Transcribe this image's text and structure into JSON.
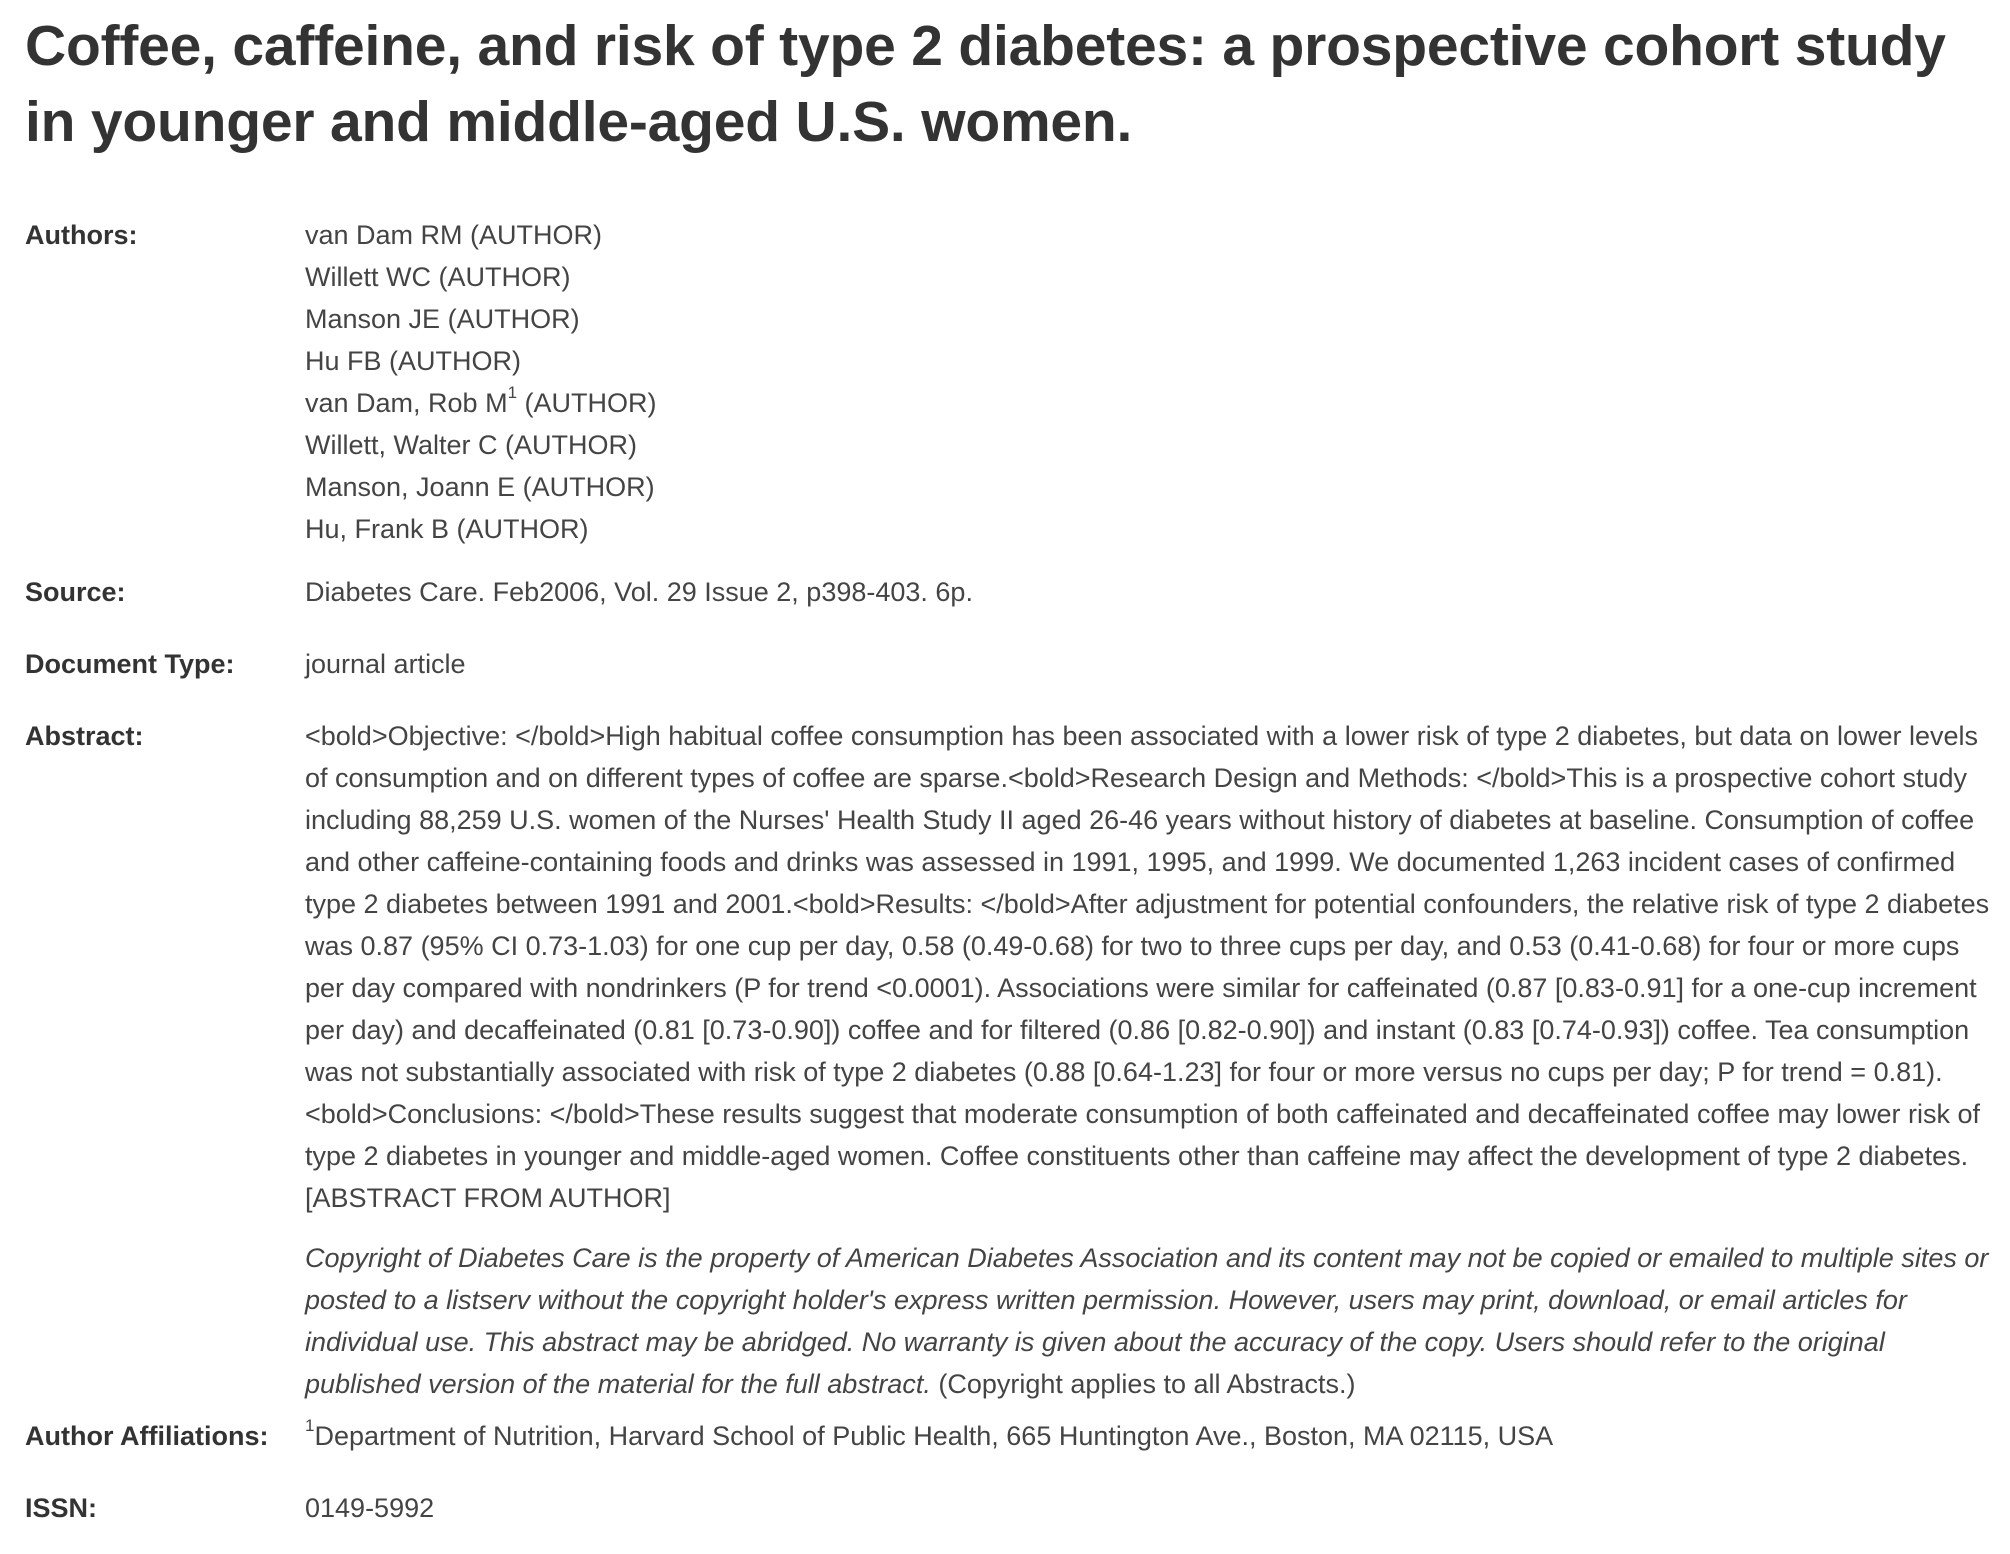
{
  "title": "Coffee, caffeine, and risk of type 2 diabetes: a prospective cohort study in younger and middle-aged U.S. women.",
  "authors": {
    "label": "Authors:",
    "items": [
      {
        "name": "van Dam RM",
        "sup": "",
        "role": " (AUTHOR)"
      },
      {
        "name": "Willett WC",
        "sup": "",
        "role": " (AUTHOR)"
      },
      {
        "name": "Manson JE",
        "sup": "",
        "role": " (AUTHOR)"
      },
      {
        "name": "Hu FB",
        "sup": "",
        "role": " (AUTHOR)"
      },
      {
        "name": "van Dam, Rob M",
        "sup": "1",
        "role": " (AUTHOR)"
      },
      {
        "name": "Willett, Walter C",
        "sup": "",
        "role": " (AUTHOR)"
      },
      {
        "name": "Manson, Joann E",
        "sup": "",
        "role": " (AUTHOR)"
      },
      {
        "name": "Hu, Frank B",
        "sup": "",
        "role": " (AUTHOR)"
      }
    ]
  },
  "source": {
    "label": "Source:",
    "value": "Diabetes Care. Feb2006, Vol. 29 Issue 2, p398-403. 6p."
  },
  "document_type": {
    "label": "Document Type:",
    "value": "journal article"
  },
  "abstract": {
    "label": "Abstract:",
    "text": "<bold>Objective: </bold>High habitual coffee consumption has been associated with a lower risk of type 2 diabetes, but data on lower levels of consumption and on different types of coffee are sparse.<bold>Research Design and Methods: </bold>This is a prospective cohort study including 88,259 U.S. women of the Nurses' Health Study II aged 26-46 years without history of diabetes at baseline. Consumption of coffee and other caffeine-containing foods and drinks was assessed in 1991, 1995, and 1999. We documented 1,263 incident cases of confirmed type 2 diabetes between 1991 and 2001.<bold>Results: </bold>After adjustment for potential confounders, the relative risk of type 2 diabetes was 0.87 (95% CI 0.73-1.03) for one cup per day, 0.58 (0.49-0.68) for two to three cups per day, and 0.53 (0.41-0.68) for four or more cups per day compared with nondrinkers (P for trend <0.0001). Associations were similar for caffeinated (0.87 [0.83-0.91] for a one-cup increment per day) and decaffeinated (0.81 [0.73-0.90]) coffee and for filtered (0.86 [0.82-0.90]) and instant (0.83 [0.74-0.93]) coffee. Tea consumption was not substantially associated with risk of type 2 diabetes (0.88 [0.64-1.23] for four or more versus no cups per day; P for trend = 0.81).<bold>Conclusions: </bold>These results suggest that moderate consumption of both caffeinated and decaffeinated coffee may lower risk of type 2 diabetes in younger and middle-aged women. Coffee constituents other than caffeine may affect the development of type 2 diabetes. [ABSTRACT FROM AUTHOR]",
    "copyright_italic": "Copyright of Diabetes Care is the property of American Diabetes Association and its content may not be copied or emailed to multiple sites or posted to a listserv without the copyright holder's express written permission. However, users may print, download, or email articles for individual use. This abstract may be abridged. No warranty is given about the accuracy of the copy. Users should refer to the original published version of the material for the full abstract.",
    "copyright_note": " (Copyright applies to all Abstracts.)"
  },
  "author_affiliations": {
    "label": "Author Affiliations:",
    "sup": "1",
    "value": "Department of Nutrition, Harvard School of Public Health, 665 Huntington Ave., Boston, MA 02115, USA"
  },
  "issn": {
    "label": "ISSN:",
    "value": "0149-5992"
  }
}
